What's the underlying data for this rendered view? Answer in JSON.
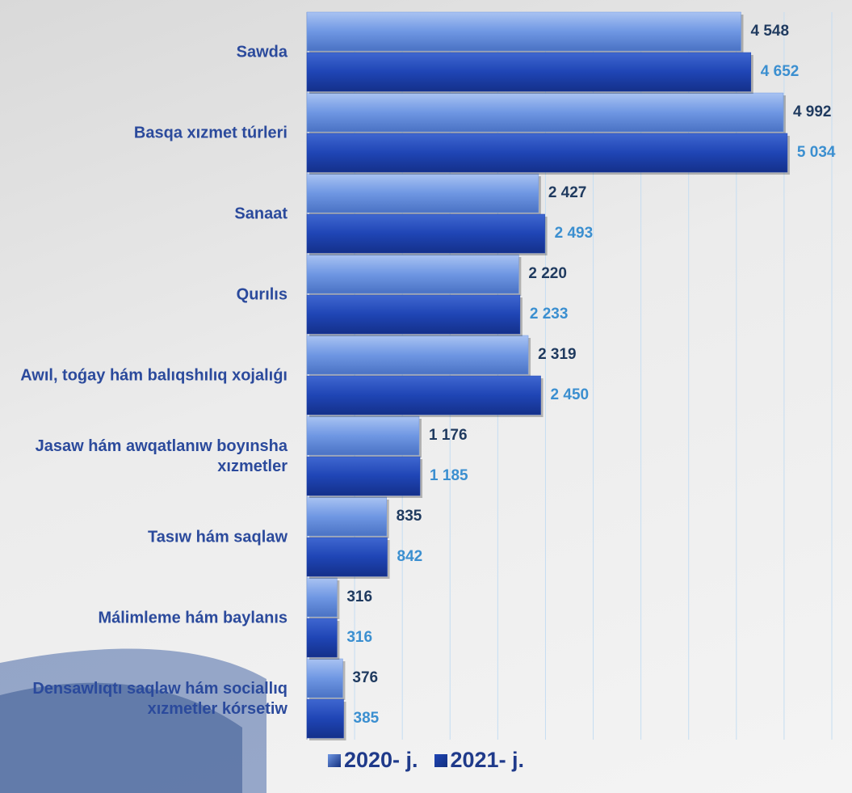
{
  "chart_data": {
    "type": "bar",
    "orientation": "horizontal",
    "categories": [
      "Sawda",
      "Basqa xızmet túrleri",
      "Sanaat",
      "Qurılıs",
      "Awıl, toǵay hám balıqshılıq xojalıǵı",
      "Jasaw hám awqatlanıw boyınsha xızmetler",
      "Tasıw hám saqlaw",
      "Málimleme hám baylanıs",
      "Densawlıqtı saqlaw hám sociallıq xızmetler kórsetiw"
    ],
    "series": [
      {
        "name": "2020- j.",
        "color": "#6f97e3",
        "label_color": "#1f3a5f",
        "values": [
          4548,
          4992,
          2427,
          2220,
          2319,
          1176,
          835,
          316,
          376
        ],
        "value_labels": [
          "4 548",
          "4 992",
          "2 427",
          "2 220",
          "2 319",
          "1 176",
          "835",
          "316",
          "376"
        ]
      },
      {
        "name": "2021- j.",
        "color": "#1f45b5",
        "label_color": "#3b8fd0",
        "values": [
          4652,
          5034,
          2493,
          2233,
          2450,
          1185,
          842,
          316,
          385
        ],
        "value_labels": [
          "4 652",
          "5 034",
          "2 493",
          "2 233",
          "2 450",
          "1 185",
          "842",
          "316",
          "385"
        ]
      }
    ],
    "xlim": [
      0,
      5500
    ],
    "xticks": [
      0,
      500,
      1000,
      1500,
      2000,
      2500,
      3000,
      3500,
      4000,
      4500,
      5000,
      5500
    ],
    "grid": true,
    "legend": "bottom"
  }
}
